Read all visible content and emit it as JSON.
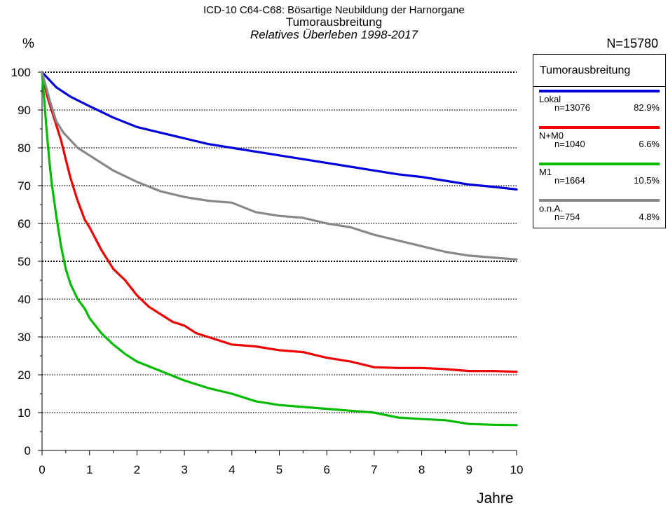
{
  "chart_data": {
    "type": "line",
    "title": "ICD-10 C64-C68: Bösartige Neubildung der Harnorgane",
    "subtitle": "Tumorausbreitung",
    "subtitle2": "Relatives Überleben 1998-2017",
    "ylabel": "%",
    "xlabel": "Jahre",
    "total_n": "N=15780",
    "xlim": [
      0,
      10
    ],
    "ylim": [
      0,
      100
    ],
    "x_ticks": [
      "0",
      "1",
      "2",
      "3",
      "4",
      "5",
      "6",
      "7",
      "8",
      "9",
      "10"
    ],
    "y_ticks": [
      "0",
      "10",
      "20",
      "30",
      "40",
      "50",
      "60",
      "70",
      "80",
      "90",
      "100"
    ],
    "grid": "horizontal dotted",
    "legend_title": "Tumorausbreitung",
    "legend_position": "right",
    "series": [
      {
        "name": "Lokal",
        "n": "n=13076",
        "pct": "82.9%",
        "color": "#0000dd",
        "points": [
          [
            0,
            100
          ],
          [
            0.3,
            96
          ],
          [
            0.6,
            93.5
          ],
          [
            1,
            91
          ],
          [
            1.5,
            88
          ],
          [
            2,
            85.5
          ],
          [
            2.5,
            84
          ],
          [
            3,
            82.5
          ],
          [
            3.5,
            81
          ],
          [
            4,
            80
          ],
          [
            4.5,
            79
          ],
          [
            5,
            78
          ],
          [
            5.5,
            77
          ],
          [
            6,
            76
          ],
          [
            6.5,
            75
          ],
          [
            7,
            74
          ],
          [
            7.5,
            73
          ],
          [
            8,
            72.3
          ],
          [
            8.5,
            71.3
          ],
          [
            9,
            70.3
          ],
          [
            9.5,
            69.7
          ],
          [
            10,
            69
          ]
        ]
      },
      {
        "name": "N+M0",
        "n": "n=1040",
        "pct": "6.6%",
        "color": "#ee0000",
        "points": [
          [
            0,
            100
          ],
          [
            0.1,
            94
          ],
          [
            0.25,
            88
          ],
          [
            0.4,
            82
          ],
          [
            0.5,
            77
          ],
          [
            0.6,
            72
          ],
          [
            0.75,
            66
          ],
          [
            0.9,
            61
          ],
          [
            1,
            59
          ],
          [
            1.25,
            53
          ],
          [
            1.5,
            48
          ],
          [
            1.75,
            45
          ],
          [
            2,
            41
          ],
          [
            2.25,
            38
          ],
          [
            2.5,
            36
          ],
          [
            2.75,
            34
          ],
          [
            3,
            33
          ],
          [
            3.25,
            31
          ],
          [
            3.5,
            30
          ],
          [
            3.75,
            29
          ],
          [
            4,
            28
          ],
          [
            4.5,
            27.5
          ],
          [
            5,
            26.5
          ],
          [
            5.5,
            26
          ],
          [
            6,
            24.5
          ],
          [
            6.5,
            23.5
          ],
          [
            7,
            22
          ],
          [
            7.5,
            21.8
          ],
          [
            8,
            21.8
          ],
          [
            8.5,
            21.5
          ],
          [
            9,
            21
          ],
          [
            9.5,
            21
          ],
          [
            10,
            20.8
          ]
        ]
      },
      {
        "name": "M1",
        "n": "n=1664",
        "pct": "10.5%",
        "color": "#00bb00",
        "points": [
          [
            0,
            100
          ],
          [
            0.05,
            92
          ],
          [
            0.1,
            84
          ],
          [
            0.15,
            77
          ],
          [
            0.2,
            71
          ],
          [
            0.3,
            62
          ],
          [
            0.4,
            54
          ],
          [
            0.5,
            48
          ],
          [
            0.6,
            44
          ],
          [
            0.75,
            40
          ],
          [
            0.9,
            37.5
          ],
          [
            1,
            35
          ],
          [
            1.25,
            31
          ],
          [
            1.5,
            28
          ],
          [
            1.75,
            25.5
          ],
          [
            2,
            23.5
          ],
          [
            2.5,
            21
          ],
          [
            3,
            18.5
          ],
          [
            3.5,
            16.5
          ],
          [
            4,
            15
          ],
          [
            4.5,
            13
          ],
          [
            5,
            12
          ],
          [
            5.5,
            11.5
          ],
          [
            6,
            11
          ],
          [
            6.5,
            10.5
          ],
          [
            7,
            10
          ],
          [
            7.5,
            8.7
          ],
          [
            8,
            8.3
          ],
          [
            8.5,
            8
          ],
          [
            9,
            7
          ],
          [
            9.5,
            6.8
          ],
          [
            10,
            6.7
          ]
        ]
      },
      {
        "name": "o.n.A.",
        "n": "n=754",
        "pct": "4.8%",
        "color": "#888888",
        "points": [
          [
            0,
            100
          ],
          [
            0.15,
            93
          ],
          [
            0.3,
            87
          ],
          [
            0.45,
            84
          ],
          [
            0.6,
            82
          ],
          [
            0.75,
            80
          ],
          [
            1,
            78
          ],
          [
            1.25,
            76
          ],
          [
            1.5,
            74
          ],
          [
            2,
            71
          ],
          [
            2.5,
            68.5
          ],
          [
            3,
            67
          ],
          [
            3.5,
            66
          ],
          [
            4,
            65.5
          ],
          [
            4.5,
            63
          ],
          [
            5,
            62
          ],
          [
            5.5,
            61.5
          ],
          [
            6,
            60
          ],
          [
            6.5,
            59
          ],
          [
            7,
            57
          ],
          [
            7.5,
            55.5
          ],
          [
            8,
            54
          ],
          [
            8.5,
            52.5
          ],
          [
            9,
            51.5
          ],
          [
            9.5,
            51
          ],
          [
            10,
            50.5
          ]
        ]
      }
    ]
  }
}
